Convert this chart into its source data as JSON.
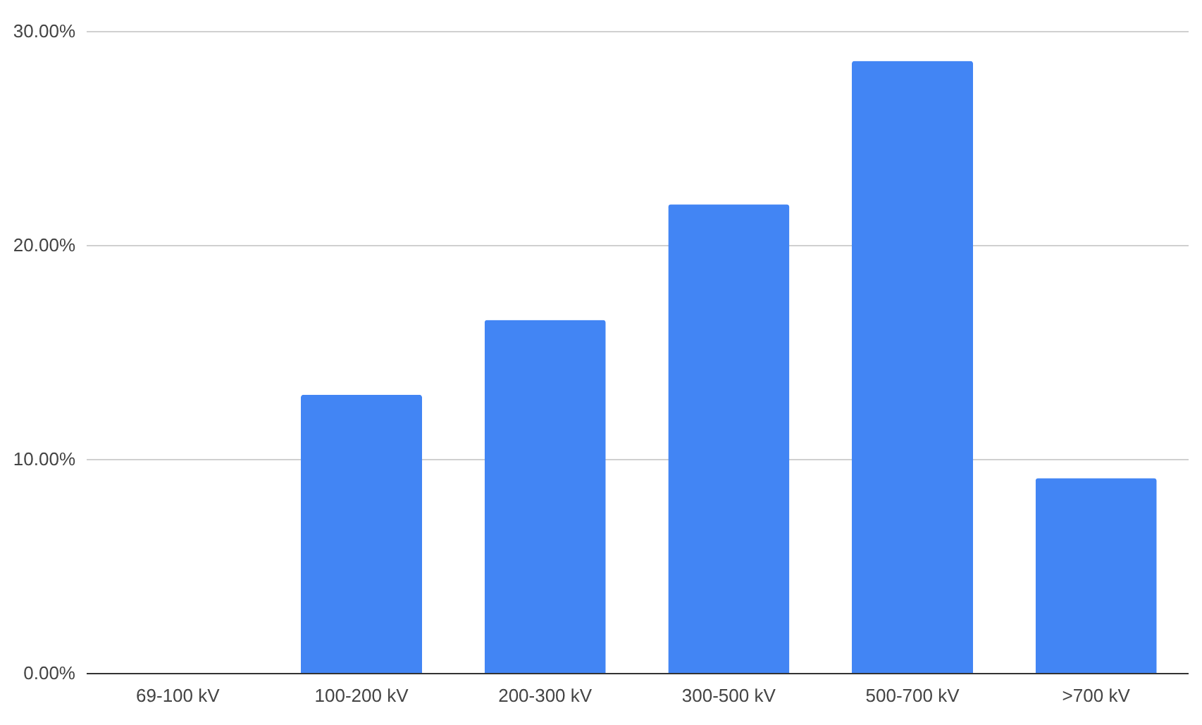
{
  "chart_data": {
    "type": "bar",
    "categories": [
      "69-100 kV",
      "100-200 kV",
      "200-300 kV",
      "300-500 kV",
      "500-700 kV",
      ">700 kV"
    ],
    "values": [
      0,
      13.0,
      16.5,
      21.9,
      28.6,
      9.1
    ],
    "color": "#4285f4",
    "ylim": [
      0,
      30
    ],
    "yticks": [
      {
        "value": 0,
        "label": "0.00%"
      },
      {
        "value": 10,
        "label": "10.00%"
      },
      {
        "value": 20,
        "label": "20.00%"
      },
      {
        "value": 30,
        "label": "30.00%"
      }
    ],
    "grid": "y"
  }
}
